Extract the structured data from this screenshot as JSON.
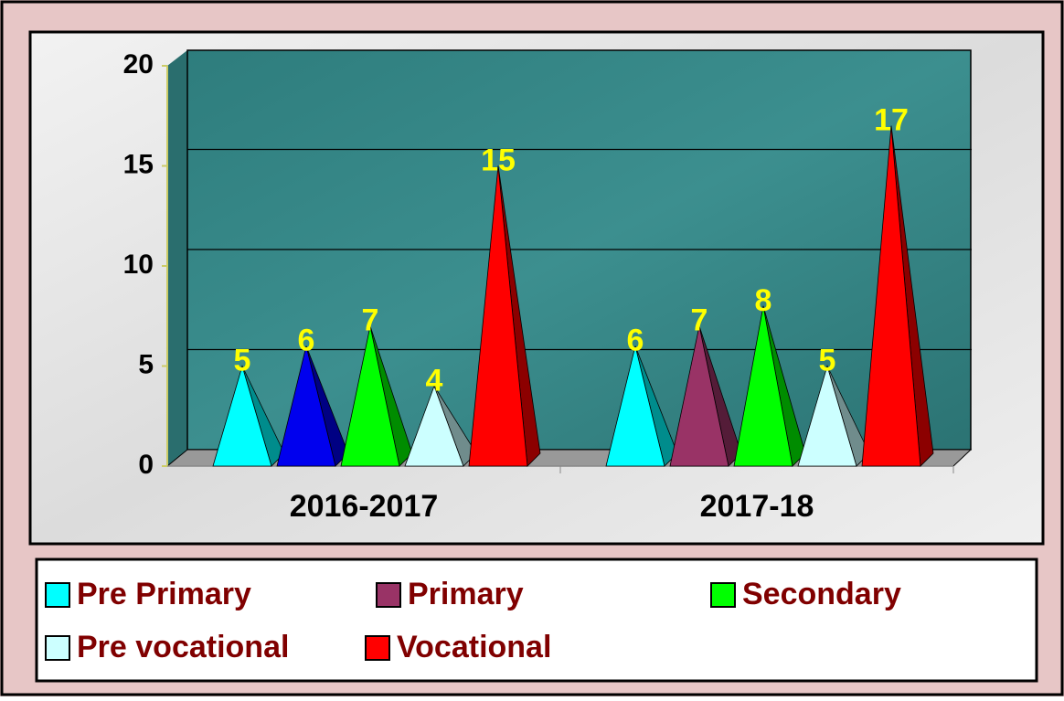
{
  "chart_data": {
    "type": "cone",
    "categories": [
      "2016-2017",
      "2017-18"
    ],
    "series": [
      {
        "name": "Pre Primary",
        "color": "#00ffff",
        "values": [
          5,
          6
        ]
      },
      {
        "name": "Primary",
        "color": "#993366",
        "colors": [
          "#0000ee",
          "#993366"
        ],
        "values": [
          6,
          7
        ]
      },
      {
        "name": "Secondary",
        "color": "#00ff00",
        "values": [
          7,
          8
        ]
      },
      {
        "name": "Pre vocational",
        "color": "#ccffff",
        "values": [
          4,
          5
        ]
      },
      {
        "name": "Vocational",
        "color": "#ff0000",
        "values": [
          15,
          17
        ]
      }
    ],
    "ylim": [
      0,
      20
    ],
    "yticks": [
      0,
      5,
      10,
      15,
      20
    ],
    "grid": true
  }
}
